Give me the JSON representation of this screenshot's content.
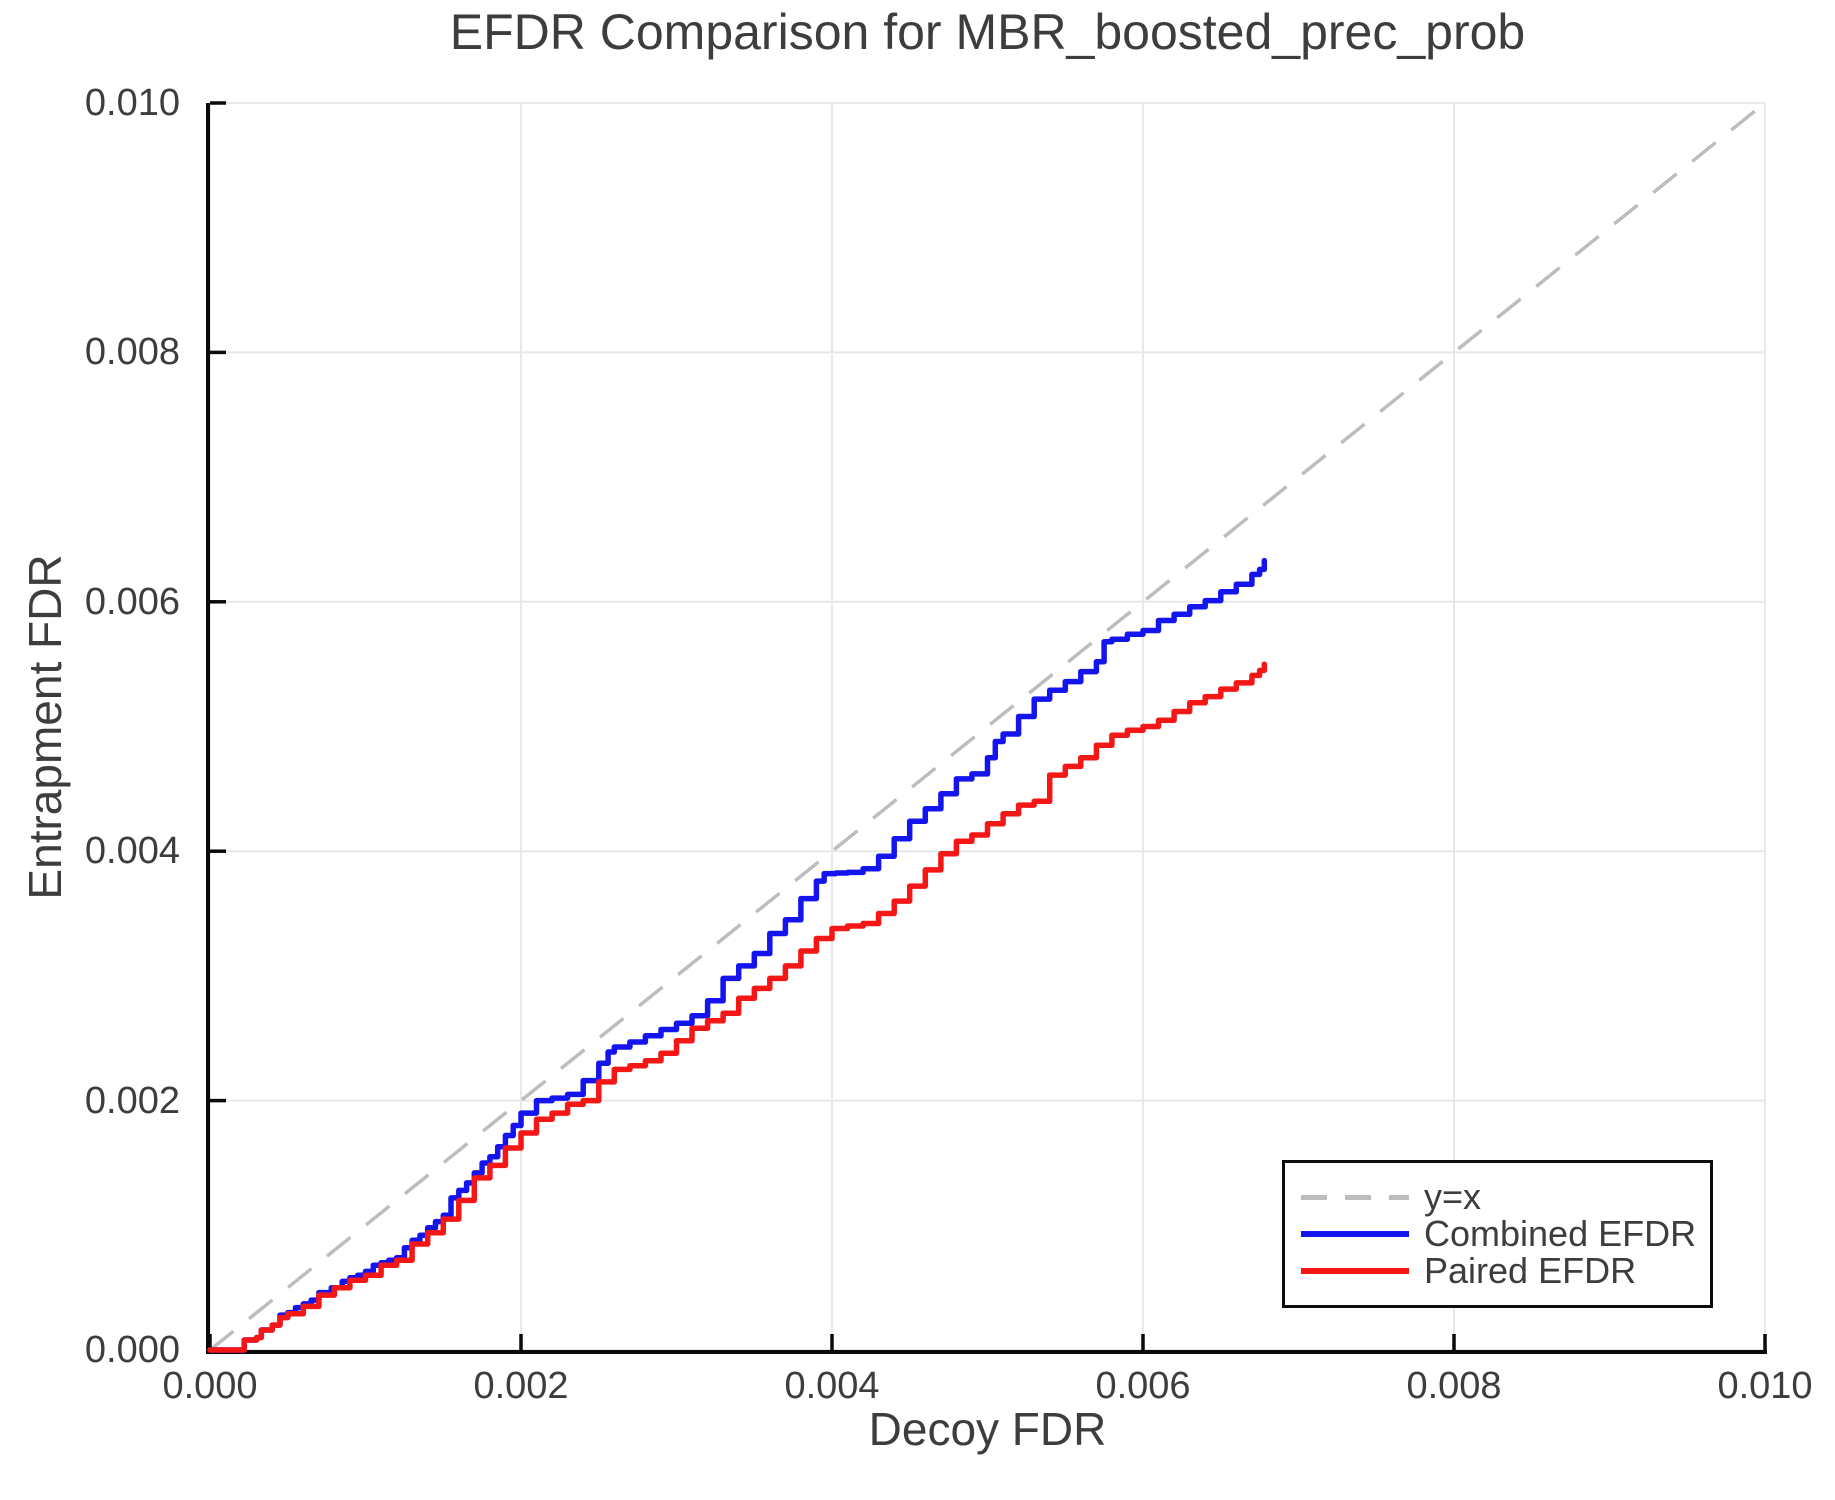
{
  "title": "EFDR Comparison for MBR_boosted_prec_prob",
  "chart_data": {
    "type": "line",
    "title": "EFDR Comparison for MBR_boosted_prec_prob",
    "xlabel": "Decoy FDR",
    "ylabel": "Entrapment FDR",
    "xlim": [
      0.0,
      0.01
    ],
    "ylim": [
      0.0,
      0.01
    ],
    "grid": true,
    "legend_position": "lower right",
    "x_tick_values": [
      0.0,
      0.002,
      0.004,
      0.006,
      0.008,
      0.01
    ],
    "x_tick_labels": [
      "0.000",
      "0.002",
      "0.004",
      "0.006",
      "0.008",
      "0.010"
    ],
    "y_tick_values": [
      0.0,
      0.002,
      0.004,
      0.006,
      0.008,
      0.01
    ],
    "y_tick_labels": [
      "0.000",
      "0.002",
      "0.004",
      "0.006",
      "0.008",
      "0.010"
    ],
    "colors": {
      "grid": "#e8e8e8",
      "axis": "#0a0a0a",
      "text": "#3d3d3d",
      "diagonal": "#bdbdbd"
    },
    "diagonal": {
      "label": "y=x",
      "style": "dashed",
      "color": "#bdbdbd",
      "from": [
        0.0,
        0.0
      ],
      "to": [
        0.01,
        0.01
      ]
    },
    "series": [
      {
        "name": "Combined EFDR",
        "color": "#1414ef",
        "points": [
          [
            0.0,
            0.0
          ],
          [
            0.0002,
            0.0
          ],
          [
            0.00022,
            8e-05
          ],
          [
            0.0003,
            0.0001
          ],
          [
            0.00033,
            0.00016
          ],
          [
            0.0004,
            0.0002
          ],
          [
            0.00045,
            0.00028
          ],
          [
            0.0005,
            0.0003
          ],
          [
            0.00055,
            0.00034
          ],
          [
            0.0006,
            0.00037
          ],
          [
            0.00065,
            0.0004
          ],
          [
            0.0007,
            0.00046
          ],
          [
            0.00078,
            0.0005
          ],
          [
            0.00085,
            0.00055
          ],
          [
            0.0009,
            0.00058
          ],
          [
            0.00095,
            0.0006
          ],
          [
            0.001,
            0.00063
          ],
          [
            0.00105,
            0.00068
          ],
          [
            0.0011,
            0.0007
          ],
          [
            0.00115,
            0.00072
          ],
          [
            0.0012,
            0.00074
          ],
          [
            0.00125,
            0.00082
          ],
          [
            0.0013,
            0.00088
          ],
          [
            0.00135,
            0.00092
          ],
          [
            0.0014,
            0.00098
          ],
          [
            0.00145,
            0.00103
          ],
          [
            0.0015,
            0.00108
          ],
          [
            0.00155,
            0.00122
          ],
          [
            0.0016,
            0.00128
          ],
          [
            0.00165,
            0.00134
          ],
          [
            0.0017,
            0.00142
          ],
          [
            0.00175,
            0.0015
          ],
          [
            0.0018,
            0.00155
          ],
          [
            0.00185,
            0.00163
          ],
          [
            0.0019,
            0.00172
          ],
          [
            0.00195,
            0.0018
          ],
          [
            0.002,
            0.0019
          ],
          [
            0.0021,
            0.002
          ],
          [
            0.0022,
            0.00202
          ],
          [
            0.0023,
            0.00205
          ],
          [
            0.0024,
            0.00216
          ],
          [
            0.0025,
            0.0023
          ],
          [
            0.00256,
            0.00239
          ],
          [
            0.0026,
            0.00243
          ],
          [
            0.0027,
            0.00247
          ],
          [
            0.0028,
            0.00252
          ],
          [
            0.0029,
            0.00257
          ],
          [
            0.003,
            0.00262
          ],
          [
            0.0031,
            0.00268
          ],
          [
            0.0032,
            0.0028
          ],
          [
            0.0033,
            0.00298
          ],
          [
            0.0034,
            0.00308
          ],
          [
            0.0035,
            0.00318
          ],
          [
            0.0036,
            0.00334
          ],
          [
            0.0037,
            0.00345
          ],
          [
            0.0038,
            0.00362
          ],
          [
            0.0039,
            0.00376
          ],
          [
            0.00395,
            0.00382
          ],
          [
            0.0041,
            0.00383
          ],
          [
            0.0042,
            0.00386
          ],
          [
            0.0043,
            0.00396
          ],
          [
            0.0044,
            0.0041
          ],
          [
            0.0045,
            0.00424
          ],
          [
            0.0046,
            0.00434
          ],
          [
            0.0047,
            0.00446
          ],
          [
            0.0048,
            0.00458
          ],
          [
            0.0049,
            0.00462
          ],
          [
            0.005,
            0.00475
          ],
          [
            0.00505,
            0.00488
          ],
          [
            0.0051,
            0.00494
          ],
          [
            0.0052,
            0.00508
          ],
          [
            0.0053,
            0.00522
          ],
          [
            0.0054,
            0.00529
          ],
          [
            0.0055,
            0.00536
          ],
          [
            0.0056,
            0.00544
          ],
          [
            0.0057,
            0.00552
          ],
          [
            0.00575,
            0.00568
          ],
          [
            0.0058,
            0.0057
          ],
          [
            0.0059,
            0.00574
          ],
          [
            0.006,
            0.00577
          ],
          [
            0.0061,
            0.00585
          ],
          [
            0.0062,
            0.0059
          ],
          [
            0.0063,
            0.00596
          ],
          [
            0.0064,
            0.00601
          ],
          [
            0.0065,
            0.00608
          ],
          [
            0.0066,
            0.00614
          ],
          [
            0.0067,
            0.00622
          ],
          [
            0.00675,
            0.00626
          ],
          [
            0.00678,
            0.00633
          ]
        ]
      },
      {
        "name": "Paired EFDR",
        "color": "#f51616",
        "points": [
          [
            0.0,
            0.0
          ],
          [
            0.0002,
            0.0
          ],
          [
            0.00022,
            8e-05
          ],
          [
            0.0003,
            0.0001
          ],
          [
            0.00033,
            0.00016
          ],
          [
            0.0004,
            0.0002
          ],
          [
            0.00045,
            0.00026
          ],
          [
            0.0005,
            0.00029
          ],
          [
            0.0006,
            0.00035
          ],
          [
            0.0007,
            0.00044
          ],
          [
            0.0008,
            0.0005
          ],
          [
            0.0009,
            0.00056
          ],
          [
            0.001,
            0.0006
          ],
          [
            0.0011,
            0.00068
          ],
          [
            0.0012,
            0.00072
          ],
          [
            0.0013,
            0.00085
          ],
          [
            0.0014,
            0.00094
          ],
          [
            0.0015,
            0.00105
          ],
          [
            0.0016,
            0.0012
          ],
          [
            0.0017,
            0.00138
          ],
          [
            0.0018,
            0.00148
          ],
          [
            0.0019,
            0.00162
          ],
          [
            0.002,
            0.00174
          ],
          [
            0.0021,
            0.00185
          ],
          [
            0.0022,
            0.0019
          ],
          [
            0.0023,
            0.00197
          ],
          [
            0.0024,
            0.002
          ],
          [
            0.0025,
            0.00215
          ],
          [
            0.0026,
            0.00225
          ],
          [
            0.0027,
            0.00228
          ],
          [
            0.0028,
            0.00232
          ],
          [
            0.0029,
            0.00238
          ],
          [
            0.003,
            0.00248
          ],
          [
            0.0031,
            0.00258
          ],
          [
            0.0032,
            0.00264
          ],
          [
            0.0033,
            0.0027
          ],
          [
            0.0034,
            0.00282
          ],
          [
            0.0035,
            0.0029
          ],
          [
            0.0036,
            0.00298
          ],
          [
            0.0037,
            0.00308
          ],
          [
            0.0038,
            0.0032
          ],
          [
            0.0039,
            0.0033
          ],
          [
            0.004,
            0.00338
          ],
          [
            0.0041,
            0.0034
          ],
          [
            0.0042,
            0.00342
          ],
          [
            0.0043,
            0.0035
          ],
          [
            0.0044,
            0.0036
          ],
          [
            0.0045,
            0.00372
          ],
          [
            0.0046,
            0.00385
          ],
          [
            0.0047,
            0.00398
          ],
          [
            0.0048,
            0.00408
          ],
          [
            0.0049,
            0.00413
          ],
          [
            0.005,
            0.00422
          ],
          [
            0.0051,
            0.0043
          ],
          [
            0.0052,
            0.00437
          ],
          [
            0.0053,
            0.0044
          ],
          [
            0.0054,
            0.00461
          ],
          [
            0.0055,
            0.00468
          ],
          [
            0.0056,
            0.00475
          ],
          [
            0.0057,
            0.00485
          ],
          [
            0.0058,
            0.00493
          ],
          [
            0.0059,
            0.00497
          ],
          [
            0.006,
            0.005
          ],
          [
            0.0061,
            0.00505
          ],
          [
            0.0062,
            0.00512
          ],
          [
            0.0063,
            0.00519
          ],
          [
            0.0064,
            0.00524
          ],
          [
            0.0065,
            0.0053
          ],
          [
            0.0066,
            0.00535
          ],
          [
            0.0067,
            0.00541
          ],
          [
            0.00675,
            0.00545
          ],
          [
            0.00678,
            0.0055
          ]
        ]
      }
    ]
  }
}
